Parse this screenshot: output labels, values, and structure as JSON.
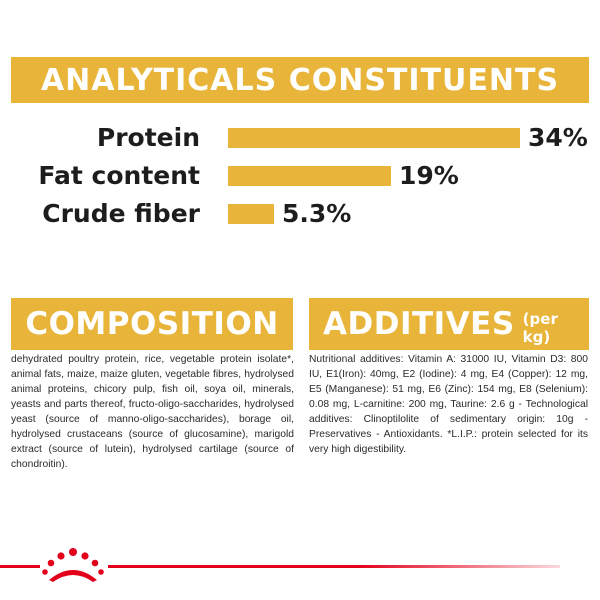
{
  "analytics": {
    "title": "ANALYTICALS CONSTITUENTS",
    "rows": [
      {
        "label": "Protein",
        "value": "34%",
        "fraction": 0.34
      },
      {
        "label": "Fat content",
        "value": "19%",
        "fraction": 0.19
      },
      {
        "label": "Crude fiber",
        "value": "5.3%",
        "fraction": 0.053
      }
    ]
  },
  "composition": {
    "title": "COMPOSITION",
    "text": "dehydrated poultry protein, rice, vegetable protein isolate*, animal fats, maize, maize gluten, vegetable fibres, hydrolysed animal proteins, chicory pulp, fish oil, soya oil, minerals, yeasts and parts thereof, fructo-oligo-saccharides, hydrolysed yeast (source of manno-oligo-saccharides), borage oil, hydrolysed crustaceans (source of glucosamine), marigold extract (source of lutein), hydrolysed cartilage (source of chondroitin)."
  },
  "additives": {
    "title": "ADDITIVES",
    "subtitle": "(per kg)",
    "text": "Nutritional additives: Vitamin A: 31000 IU, Vitamin D3: 800 IU, E1(Iron): 40mg, E2 (Iodine): 4 mg, E4 (Copper): 12 mg, E5 (Manganese): 51 mg, E6 (Zinc): 154 mg, E8 (Selenium): 0.08 mg, L-carnitine: 200 mg, Taurine: 2.6 g - Technological additives: Clinoptilolite of sedimentary origin: 10g - Preservatives - Antioxidants. *L.I.P.: protein selected for its very high digestibility."
  },
  "colors": {
    "accent": "#e8b53a",
    "brand_red": "#e2001a"
  },
  "logo": {
    "icon": "royal-canin-crown-icon"
  }
}
